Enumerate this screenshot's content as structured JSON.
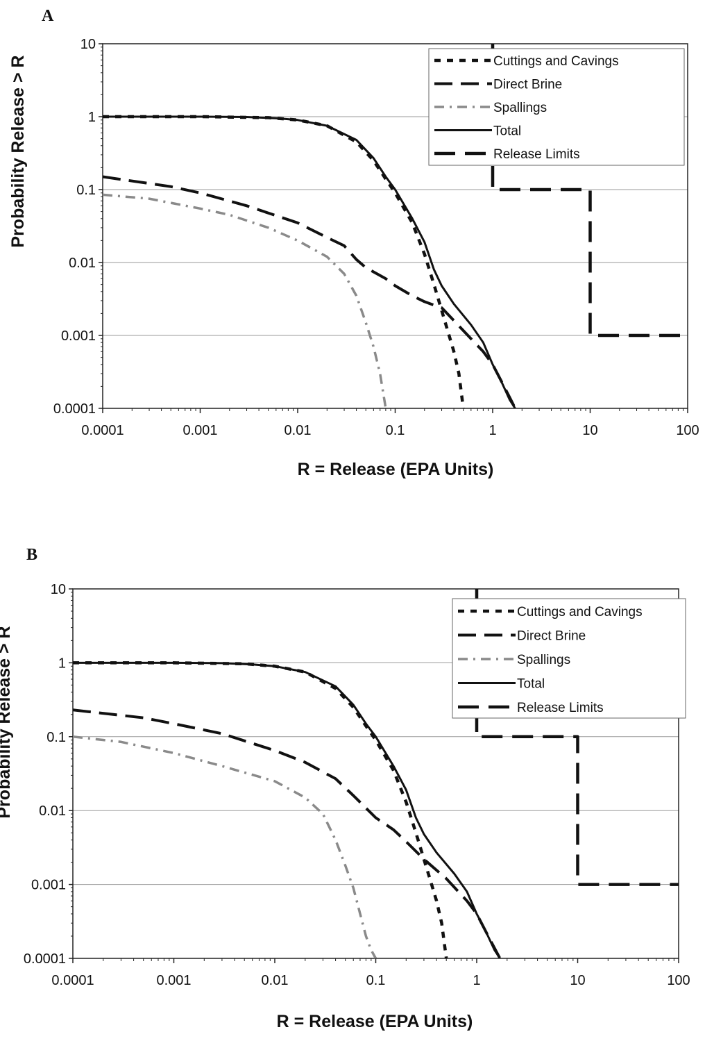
{
  "chart_data": [
    {
      "panel": "A",
      "type": "line",
      "xlabel": "R = Release (EPA Units)",
      "ylabel": "Probability Release > R",
      "xscale": "log",
      "yscale": "log",
      "xlim": [
        0.0001,
        100
      ],
      "ylim": [
        0.0001,
        10
      ],
      "x_ticks": [
        "0.0001",
        "0.001",
        "0.01",
        "0.1",
        "1",
        "10",
        "100"
      ],
      "y_ticks": [
        "10",
        "1",
        "0.1",
        "0.01",
        "0.001",
        "0.0001"
      ],
      "grid": "horizontal",
      "legend_position": "top-right",
      "series": [
        {
          "name": "Cuttings and Cavings",
          "style": "short-dash",
          "color": "#111111",
          "x": [
            0.0001,
            0.001,
            0.005,
            0.01,
            0.02,
            0.04,
            0.06,
            0.08,
            0.1,
            0.15,
            0.2,
            0.25,
            0.3,
            0.35,
            0.4,
            0.45,
            0.5
          ],
          "y": [
            1,
            1,
            0.97,
            0.9,
            0.75,
            0.45,
            0.25,
            0.14,
            0.09,
            0.035,
            0.013,
            0.005,
            0.0022,
            0.0011,
            0.0006,
            0.0003,
            0.0001
          ]
        },
        {
          "name": "Direct Brine",
          "style": "long-dash",
          "color": "#111111",
          "x": [
            0.0001,
            0.0005,
            0.001,
            0.003,
            0.01,
            0.02,
            0.03,
            0.04,
            0.05,
            0.08,
            0.1,
            0.15,
            0.2,
            0.25,
            0.3,
            0.4,
            0.6,
            0.8,
            1.0,
            1.2,
            1.5,
            1.7
          ],
          "y": [
            0.15,
            0.11,
            0.09,
            0.06,
            0.035,
            0.022,
            0.017,
            0.011,
            0.0085,
            0.006,
            0.0048,
            0.0035,
            0.0029,
            0.0026,
            0.0024,
            0.0016,
            0.0009,
            0.0006,
            0.0004,
            0.00025,
            0.00014,
            0.0001
          ]
        },
        {
          "name": "Spallings",
          "style": "gray-dash-dot",
          "color": "#8a8a8a",
          "x": [
            0.0001,
            0.0003,
            0.001,
            0.002,
            0.005,
            0.01,
            0.02,
            0.03,
            0.04,
            0.05,
            0.06,
            0.07,
            0.08
          ],
          "y": [
            0.085,
            0.075,
            0.055,
            0.045,
            0.03,
            0.02,
            0.012,
            0.007,
            0.0035,
            0.0015,
            0.0007,
            0.0003,
            0.0001
          ]
        },
        {
          "name": "Total",
          "style": "solid",
          "color": "#111111",
          "x": [
            0.0001,
            0.001,
            0.003,
            0.006,
            0.01,
            0.02,
            0.04,
            0.06,
            0.08,
            0.1,
            0.15,
            0.2,
            0.25,
            0.3,
            0.4,
            0.6,
            0.8,
            1.0,
            1.2,
            1.5,
            1.7
          ],
          "y": [
            1,
            1,
            0.99,
            0.95,
            0.9,
            0.75,
            0.48,
            0.27,
            0.15,
            0.1,
            0.04,
            0.019,
            0.008,
            0.0048,
            0.0027,
            0.0014,
            0.0008,
            0.0004,
            0.00025,
            0.00013,
            0.0001
          ]
        },
        {
          "name": "Release Limits",
          "style": "long-dash-thick",
          "color": "#111111",
          "x": [
            1,
            1,
            10,
            10,
            100
          ],
          "y": [
            10,
            0.1,
            0.1,
            0.001,
            0.001
          ]
        }
      ]
    },
    {
      "panel": "B",
      "type": "line",
      "xlabel": "R = Release (EPA Units)",
      "ylabel": "Probability Release > R",
      "xscale": "log",
      "yscale": "log",
      "xlim": [
        0.0001,
        100
      ],
      "ylim": [
        0.0001,
        10
      ],
      "x_ticks": [
        "0.0001",
        "0.001",
        "0.01",
        "0.1",
        "1",
        "10",
        "100"
      ],
      "y_ticks": [
        "10",
        "1",
        "0.1",
        "0.01",
        "0.001",
        "0.0001"
      ],
      "grid": "horizontal",
      "legend_position": "top-right",
      "series": [
        {
          "name": "Cuttings and Cavings",
          "style": "short-dash",
          "color": "#111111",
          "x": [
            0.0001,
            0.001,
            0.005,
            0.01,
            0.02,
            0.04,
            0.06,
            0.08,
            0.1,
            0.15,
            0.2,
            0.25,
            0.3,
            0.35,
            0.4,
            0.45,
            0.5
          ],
          "y": [
            1,
            1,
            0.97,
            0.9,
            0.75,
            0.45,
            0.25,
            0.14,
            0.09,
            0.035,
            0.013,
            0.005,
            0.0022,
            0.0011,
            0.0006,
            0.0003,
            0.0001
          ]
        },
        {
          "name": "Direct Brine",
          "style": "long-dash",
          "color": "#111111",
          "x": [
            0.0001,
            0.0005,
            0.001,
            0.003,
            0.01,
            0.02,
            0.04,
            0.06,
            0.1,
            0.15,
            0.2,
            0.3,
            0.5,
            0.8,
            1.0,
            1.3,
            1.7
          ],
          "y": [
            0.23,
            0.18,
            0.15,
            0.11,
            0.065,
            0.045,
            0.027,
            0.016,
            0.008,
            0.0055,
            0.0038,
            0.0022,
            0.0012,
            0.0006,
            0.0004,
            0.0002,
            0.0001
          ]
        },
        {
          "name": "Spallings",
          "style": "gray-dash-dot",
          "color": "#8a8a8a",
          "x": [
            0.0001,
            0.0003,
            0.001,
            0.003,
            0.01,
            0.02,
            0.03,
            0.04,
            0.05,
            0.06,
            0.07,
            0.08,
            0.09,
            0.1
          ],
          "y": [
            0.1,
            0.085,
            0.06,
            0.04,
            0.025,
            0.015,
            0.009,
            0.004,
            0.0018,
            0.0009,
            0.0004,
            0.0002,
            0.00013,
            0.0001
          ]
        },
        {
          "name": "Total",
          "style": "solid",
          "color": "#111111",
          "x": [
            0.0001,
            0.001,
            0.003,
            0.006,
            0.01,
            0.02,
            0.04,
            0.06,
            0.08,
            0.1,
            0.15,
            0.2,
            0.25,
            0.3,
            0.4,
            0.6,
            0.8,
            1.0,
            1.2,
            1.5,
            1.7
          ],
          "y": [
            1,
            1,
            0.99,
            0.95,
            0.9,
            0.75,
            0.48,
            0.27,
            0.15,
            0.1,
            0.04,
            0.019,
            0.008,
            0.0048,
            0.0027,
            0.0014,
            0.0008,
            0.0004,
            0.00025,
            0.00013,
            0.0001
          ]
        },
        {
          "name": "Release Limits",
          "style": "long-dash-thick",
          "color": "#111111",
          "x": [
            1,
            1,
            10,
            10,
            100
          ],
          "y": [
            10,
            0.1,
            0.1,
            0.001,
            0.001
          ]
        }
      ]
    }
  ]
}
